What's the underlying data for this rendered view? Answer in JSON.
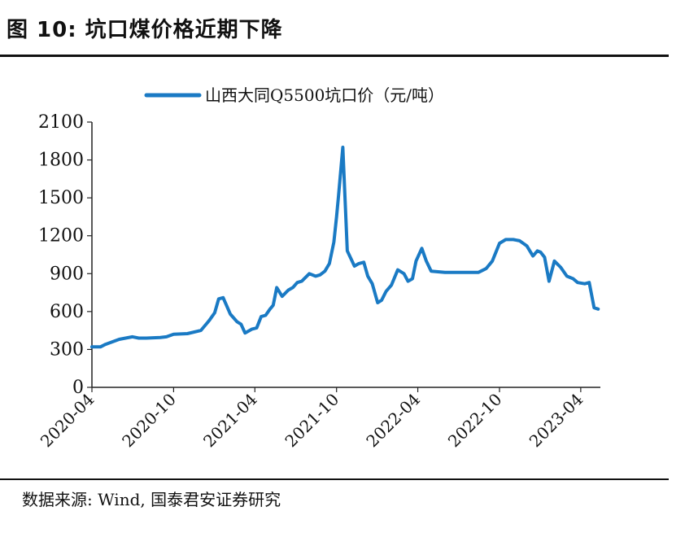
{
  "figure": {
    "title": "图 10:  坑口煤价格近期下降",
    "source": "数据来源:  Wind,  国泰君安证券研究"
  },
  "colors": {
    "line": "#1a7ac4",
    "axis": "#222222",
    "text": "#111111"
  },
  "chart_data": {
    "type": "line",
    "title": "",
    "xlabel": "",
    "ylabel": "",
    "legend_position": "top-center",
    "grid": false,
    "ylim": [
      0,
      2100
    ],
    "yticks": [
      0,
      300,
      600,
      900,
      1200,
      1500,
      1800,
      2100
    ],
    "ytick_labels": [
      "0",
      "300",
      "600",
      "900",
      "1200",
      "1500",
      "1800",
      "2100"
    ],
    "xlim": [
      "2020-04-01",
      "2023-05-15"
    ],
    "xticks": [
      "2020-04-01",
      "2020-10-01",
      "2021-04-01",
      "2021-10-01",
      "2022-04-01",
      "2022-10-01",
      "2023-04-01"
    ],
    "xtick_labels": [
      "2020-04",
      "2020-10",
      "2021-04",
      "2021-10",
      "2022-04",
      "2022-10",
      "2023-04"
    ],
    "series": [
      {
        "name": "山西大同Q5500坑口价（元/吨）",
        "x": [
          "2020-04-01",
          "2020-04-20",
          "2020-05-01",
          "2020-06-01",
          "2020-07-01",
          "2020-07-15",
          "2020-08-01",
          "2020-09-01",
          "2020-09-15",
          "2020-10-01",
          "2020-11-01",
          "2020-12-01",
          "2020-12-20",
          "2021-01-01",
          "2021-01-10",
          "2021-01-20",
          "2021-02-05",
          "2021-02-20",
          "2021-03-01",
          "2021-03-10",
          "2021-03-25",
          "2021-04-05",
          "2021-04-15",
          "2021-04-25",
          "2021-05-05",
          "2021-05-12",
          "2021-05-20",
          "2021-06-01",
          "2021-06-15",
          "2021-06-25",
          "2021-07-05",
          "2021-07-15",
          "2021-08-01",
          "2021-08-15",
          "2021-08-25",
          "2021-09-05",
          "2021-09-15",
          "2021-09-25",
          "2021-10-01",
          "2021-10-05",
          "2021-10-15",
          "2021-10-25",
          "2021-11-10",
          "2021-11-20",
          "2021-12-01",
          "2021-12-10",
          "2021-12-20",
          "2022-01-01",
          "2022-01-10",
          "2022-01-20",
          "2022-02-01",
          "2022-02-15",
          "2022-03-01",
          "2022-03-10",
          "2022-03-20",
          "2022-03-28",
          "2022-04-10",
          "2022-04-20",
          "2022-05-01",
          "2022-06-01",
          "2022-07-01",
          "2022-08-01",
          "2022-08-15",
          "2022-09-01",
          "2022-09-15",
          "2022-10-01",
          "2022-10-15",
          "2022-11-01",
          "2022-11-15",
          "2022-12-01",
          "2022-12-15",
          "2022-12-25",
          "2023-01-01",
          "2023-01-10",
          "2023-01-20",
          "2023-02-01",
          "2023-02-15",
          "2023-03-01",
          "2023-03-15",
          "2023-03-25",
          "2023-04-10",
          "2023-04-20",
          "2023-05-01",
          "2023-05-10"
        ],
        "values": [
          320,
          320,
          340,
          380,
          400,
          390,
          390,
          395,
          400,
          420,
          425,
          450,
          530,
          590,
          700,
          710,
          580,
          520,
          500,
          430,
          460,
          470,
          560,
          570,
          620,
          650,
          790,
          720,
          770,
          790,
          830,
          840,
          900,
          880,
          890,
          920,
          980,
          1150,
          1350,
          1500,
          1900,
          1080,
          960,
          980,
          990,
          880,
          820,
          670,
          690,
          760,
          810,
          930,
          900,
          840,
          860,
          1000,
          1100,
          1000,
          920,
          910,
          910,
          910,
          910,
          940,
          1000,
          1140,
          1170,
          1170,
          1160,
          1120,
          1040,
          1080,
          1070,
          1030,
          840,
          1000,
          950,
          880,
          860,
          830,
          820,
          830,
          630,
          620
        ]
      }
    ]
  }
}
